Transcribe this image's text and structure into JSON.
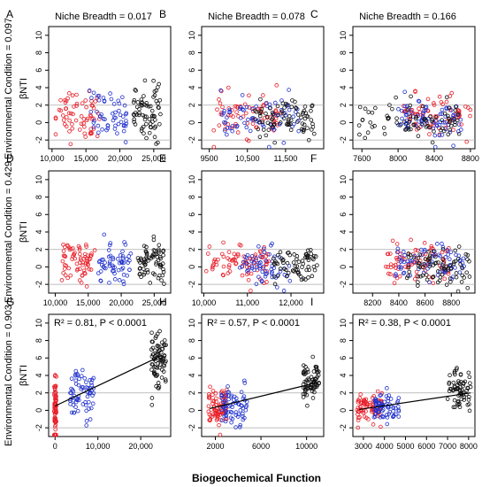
{
  "figure": {
    "xlabel": "Biogeochemical Function",
    "ylabel": "βNTI",
    "yticks": [
      -2,
      0,
      2,
      4,
      6,
      8,
      10
    ],
    "ylim": [
      -3,
      11
    ],
    "ref_lines": [
      -2,
      2
    ]
  },
  "columns": [
    {
      "label": "Niche Breadth = 0.017"
    },
    {
      "label": "Niche Breadth = 0.078"
    },
    {
      "label": "Niche Breadth = 0.166"
    }
  ],
  "rows": [
    {
      "label": "Environmental Condition = 0.097"
    },
    {
      "label": "Environmental Condition = 0.429"
    },
    {
      "label": "Environmental Condition = 0.903"
    }
  ],
  "colors": {
    "red": "#e8202a",
    "blue": "#2233cc",
    "black": "#111111",
    "ref": "#aaaaaa"
  },
  "chart_data": [
    {
      "type": "scatter",
      "panel": "A",
      "xlim": [
        9500,
        27500
      ],
      "xticks": [
        10000,
        15000,
        20000,
        25000
      ],
      "xticklabels": [
        "10,000",
        "15,000",
        "20,000",
        "25,000"
      ],
      "groups": [
        {
          "color": "red",
          "x": [
            10500,
            17000
          ],
          "y": [
            1.0,
            1.6
          ],
          "n": 65
        },
        {
          "color": "blue",
          "x": [
            15500,
            21000
          ],
          "y": [
            0.8,
            1.5
          ],
          "n": 55
        },
        {
          "color": "black",
          "x": [
            22000,
            26000
          ],
          "y": [
            1.3,
            1.8
          ],
          "n": 70
        }
      ]
    },
    {
      "type": "scatter",
      "panel": "B",
      "xlim": [
        9300,
        12500
      ],
      "xticks": [
        9500,
        10500,
        11500
      ],
      "xticklabels": [
        "9500",
        "10,500",
        "11,500"
      ],
      "groups": [
        {
          "color": "red",
          "x": [
            9600,
            11400
          ],
          "y": [
            0.9,
            1.3
          ],
          "n": 70
        },
        {
          "color": "blue",
          "x": [
            9800,
            11900
          ],
          "y": [
            0.5,
            1.3
          ],
          "n": 70
        },
        {
          "color": "black",
          "x": [
            10700,
            12300
          ],
          "y": [
            0.3,
            1.2
          ],
          "n": 80
        }
      ]
    },
    {
      "type": "scatter",
      "panel": "C",
      "xlim": [
        7500,
        8850
      ],
      "xticks": [
        7600,
        8000,
        8400,
        8800
      ],
      "xticklabels": [
        "7600",
        "8000",
        "8400",
        "8800"
      ],
      "groups": [
        {
          "color": "red",
          "x": [
            8050,
            8800
          ],
          "y": [
            0.8,
            1.3
          ],
          "n": 75
        },
        {
          "color": "blue",
          "x": [
            8000,
            8700
          ],
          "y": [
            0.2,
            1.2
          ],
          "n": 75
        },
        {
          "color": "black",
          "x": [
            7550,
            8700
          ],
          "y": [
            0.3,
            1.2
          ],
          "n": 80
        }
      ]
    },
    {
      "type": "scatter",
      "panel": "D",
      "xlim": [
        9000,
        27500
      ],
      "xticks": [
        10000,
        15000,
        20000,
        25000
      ],
      "xticklabels": [
        "10,000",
        "15,000",
        "20,000",
        "25,000"
      ],
      "groups": [
        {
          "color": "red",
          "x": [
            11000,
            16000
          ],
          "y": [
            0.6,
            1.3
          ],
          "n": 70
        },
        {
          "color": "blue",
          "x": [
            16500,
            21500
          ],
          "y": [
            0.3,
            1.2
          ],
          "n": 60
        },
        {
          "color": "black",
          "x": [
            22500,
            26500
          ],
          "y": [
            0.5,
            1.3
          ],
          "n": 70
        }
      ]
    },
    {
      "type": "scatter",
      "panel": "E",
      "xlim": [
        9950,
        12750
      ],
      "xticks": [
        10000,
        11000,
        12000
      ],
      "xticklabels": [
        "10,000",
        "11,000",
        "12,000"
      ],
      "groups": [
        {
          "color": "red",
          "x": [
            10050,
            11500
          ],
          "y": [
            0.6,
            1.3
          ],
          "n": 80
        },
        {
          "color": "blue",
          "x": [
            10800,
            12000
          ],
          "y": [
            0.1,
            1.2
          ],
          "n": 60
        },
        {
          "color": "black",
          "x": [
            11600,
            12600
          ],
          "y": [
            0.0,
            1.2
          ],
          "n": 70
        }
      ]
    },
    {
      "type": "scatter",
      "panel": "F",
      "xlim": [
        8050,
        8980
      ],
      "xticks": [
        8200,
        8400,
        8600,
        8800
      ],
      "xticklabels": [
        "8200",
        "8400",
        "8600",
        "8800"
      ],
      "groups": [
        {
          "color": "red",
          "x": [
            8300,
            8800
          ],
          "y": [
            0.5,
            1.3
          ],
          "n": 80
        },
        {
          "color": "blue",
          "x": [
            8350,
            8900
          ],
          "y": [
            0.2,
            1.2
          ],
          "n": 70
        },
        {
          "color": "black",
          "x": [
            8450,
            8950
          ],
          "y": [
            0.0,
            1.2
          ],
          "n": 80
        }
      ]
    },
    {
      "type": "scatter",
      "panel": "G",
      "annotation": "R² = 0.81, P < 0.0001",
      "xlim": [
        -1500,
        27000
      ],
      "xticks": [
        0,
        10000,
        20000
      ],
      "xticklabels": [
        "0",
        "10,000",
        "20,000"
      ],
      "fit": {
        "x": [
          0,
          25000
        ],
        "y": [
          0.5,
          6.3
        ]
      },
      "groups": [
        {
          "color": "red",
          "x": [
            -200,
            300
          ],
          "y": [
            0.0,
            2.0
          ],
          "n": 70
        },
        {
          "color": "blue",
          "x": [
            3500,
            9000
          ],
          "y": [
            1.8,
            1.5
          ],
          "n": 70
        },
        {
          "color": "black",
          "x": [
            22500,
            26000
          ],
          "y": [
            6.0,
            1.8
          ],
          "n": 80
        }
      ]
    },
    {
      "type": "scatter",
      "panel": "H",
      "annotation": "R² = 0.57, P < 0.0001",
      "xlim": [
        800,
        11500
      ],
      "xticks": [
        2000,
        6000,
        10000
      ],
      "xticklabels": [
        "2000",
        "6000",
        "10000"
      ],
      "fit": {
        "x": [
          1500,
          11000
        ],
        "y": [
          0.2,
          3.2
        ]
      },
      "groups": [
        {
          "color": "red",
          "x": [
            1400,
            3000
          ],
          "y": [
            0.2,
            1.2
          ],
          "n": 80
        },
        {
          "color": "blue",
          "x": [
            2500,
            4800
          ],
          "y": [
            0.6,
            1.2
          ],
          "n": 70
        },
        {
          "color": "black",
          "x": [
            9700,
            11100
          ],
          "y": [
            3.2,
            1.2
          ],
          "n": 70
        }
      ]
    },
    {
      "type": "scatter",
      "panel": "I",
      "annotation": "R² = 0.38, P < 0.0001",
      "xlim": [
        2500,
        8300
      ],
      "xticks": [
        3000,
        4000,
        5000,
        6000,
        7000,
        8000
      ],
      "xticklabels": [
        "3000",
        "4000",
        "5000",
        "6000",
        "7000",
        "8000"
      ],
      "fit": {
        "x": [
          2800,
          8100
        ],
        "y": [
          0.1,
          2.0
        ]
      },
      "groups": [
        {
          "color": "red",
          "x": [
            2700,
            3900
          ],
          "y": [
            0.2,
            1.0
          ],
          "n": 80
        },
        {
          "color": "blue",
          "x": [
            3500,
            4700
          ],
          "y": [
            0.3,
            1.0
          ],
          "n": 70
        },
        {
          "color": "black",
          "x": [
            7000,
            8100
          ],
          "y": [
            2.2,
            1.4
          ],
          "n": 70
        }
      ]
    }
  ]
}
